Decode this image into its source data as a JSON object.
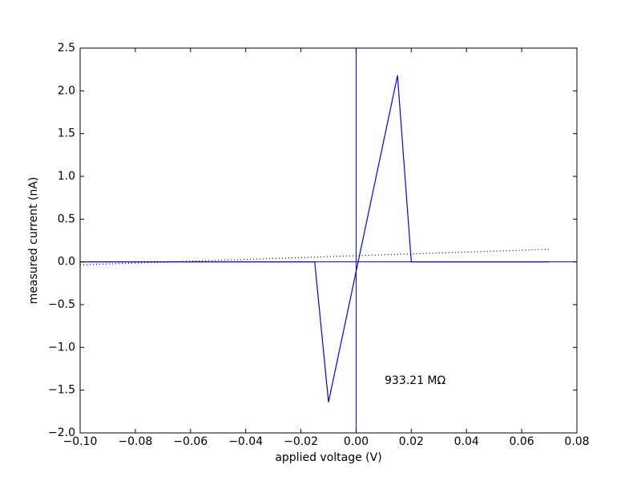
{
  "chart_data": {
    "type": "line",
    "xlabel": "applied voltage (V)",
    "ylabel": "measured current (nA)",
    "annotation": "933.21 MΩ",
    "xlim": [
      -0.1,
      0.08
    ],
    "ylim": [
      -2,
      2.5
    ],
    "xticks": [
      {
        "value": -0.1,
        "label": "−0.10"
      },
      {
        "value": -0.08,
        "label": "−0.08"
      },
      {
        "value": -0.06,
        "label": "−0.06"
      },
      {
        "value": -0.04,
        "label": "−0.04"
      },
      {
        "value": -0.02,
        "label": "−0.02"
      },
      {
        "value": 0,
        "label": "0.00"
      },
      {
        "value": 0.02,
        "label": "0.02"
      },
      {
        "value": 0.04,
        "label": "0.04"
      },
      {
        "value": 0.06,
        "label": "0.06"
      },
      {
        "value": 0.08,
        "label": "0.08"
      }
    ],
    "yticks": [
      {
        "value": -2,
        "label": "−2.0"
      },
      {
        "value": -1.5,
        "label": "−1.5"
      },
      {
        "value": -1,
        "label": "−1.0"
      },
      {
        "value": -0.5,
        "label": "−0.5"
      },
      {
        "value": 0,
        "label": "0.0"
      },
      0.5,
      {
        "value": 1,
        "label": "1.0"
      },
      1.5,
      {
        "value": 2,
        "label": "2.0"
      },
      2.5
    ],
    "reference_lines": {
      "x": 0,
      "y": 0,
      "color": "#0000ff"
    },
    "series": [
      {
        "color": "#0000ff",
        "dash": "none",
        "x": [
          -0.1,
          -0.015,
          -0.01,
          0.015,
          0.02,
          0.07
        ],
        "values": [
          0,
          0,
          -1.64,
          2.18,
          0,
          0
        ]
      },
      {
        "color": "#000000",
        "dash": "1 3",
        "x": [
          -0.1,
          0.07
        ],
        "values": [
          -0.035,
          0.147
        ]
      }
    ]
  }
}
